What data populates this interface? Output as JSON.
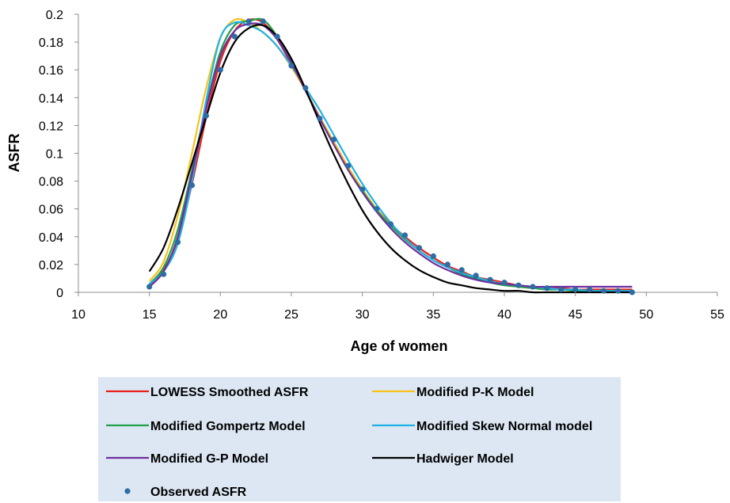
{
  "chart_data": {
    "type": "line",
    "xlabel": "Age of women",
    "ylabel": "ASFR",
    "xlim": [
      10,
      55
    ],
    "ylim": [
      0,
      0.2
    ],
    "x_ticks": [
      10,
      15,
      20,
      25,
      30,
      35,
      40,
      45,
      50,
      55
    ],
    "y_ticks": [
      0,
      0.02,
      0.04,
      0.06,
      0.08,
      0.1,
      0.12,
      0.14,
      0.16,
      0.18,
      0.2
    ],
    "grid": false,
    "legend_position": "bottom",
    "x": [
      15,
      16,
      17,
      18,
      19,
      20,
      21,
      22,
      23,
      24,
      25,
      26,
      27,
      28,
      29,
      30,
      31,
      32,
      33,
      34,
      35,
      36,
      37,
      38,
      39,
      40,
      41,
      42,
      43,
      44,
      45,
      46,
      47,
      48,
      49
    ],
    "series": [
      {
        "name": "LOWESS Smoothed ASFR",
        "kind": "line",
        "color": "#e8211d",
        "values": [
          0.005,
          0.016,
          0.038,
          0.078,
          0.126,
          0.166,
          0.188,
          0.196,
          0.194,
          0.182,
          0.164,
          0.145,
          0.126,
          0.108,
          0.09,
          0.074,
          0.06,
          0.049,
          0.04,
          0.032,
          0.025,
          0.019,
          0.015,
          0.011,
          0.009,
          0.007,
          0.005,
          0.004,
          0.003,
          0.003,
          0.002,
          0.002,
          0.002,
          0.002,
          0.002
        ]
      },
      {
        "name": "Modified P-K Model",
        "kind": "line",
        "color": "#f7c21b",
        "values": [
          0.008,
          0.022,
          0.055,
          0.1,
          0.147,
          0.183,
          0.196,
          0.194,
          0.187,
          0.177,
          0.162,
          0.145,
          0.126,
          0.108,
          0.09,
          0.074,
          0.06,
          0.048,
          0.038,
          0.03,
          0.023,
          0.018,
          0.013,
          0.01,
          0.008,
          0.006,
          0.004,
          0.003,
          0.002,
          0.002,
          0.001,
          0.001,
          0.001,
          0.001,
          0.001
        ]
      },
      {
        "name": "Modified Gompertz Model",
        "kind": "line",
        "color": "#1fa04b",
        "values": [
          0.006,
          0.018,
          0.045,
          0.088,
          0.134,
          0.173,
          0.192,
          0.195,
          0.196,
          0.184,
          0.166,
          0.145,
          0.125,
          0.106,
          0.088,
          0.073,
          0.059,
          0.048,
          0.038,
          0.03,
          0.023,
          0.018,
          0.013,
          0.01,
          0.007,
          0.005,
          0.004,
          0.003,
          0.002,
          0.002,
          0.001,
          0.001,
          0.001,
          0.001,
          0.001
        ]
      },
      {
        "name": "Modified Skew Normal model",
        "kind": "line",
        "color": "#1fb1e6",
        "values": [
          0.006,
          0.015,
          0.035,
          0.08,
          0.138,
          0.183,
          0.194,
          0.192,
          0.187,
          0.177,
          0.163,
          0.147,
          0.131,
          0.113,
          0.095,
          0.078,
          0.063,
          0.05,
          0.039,
          0.03,
          0.023,
          0.018,
          0.014,
          0.011,
          0.008,
          0.006,
          0.005,
          0.004,
          0.003,
          0.002,
          0.002,
          0.001,
          0.001,
          0.001,
          0.001
        ]
      },
      {
        "name": "Modified G-P Model",
        "kind": "line",
        "color": "#6f2f9f",
        "values": [
          0.004,
          0.015,
          0.04,
          0.085,
          0.132,
          0.17,
          0.188,
          0.193,
          0.192,
          0.182,
          0.165,
          0.145,
          0.125,
          0.106,
          0.088,
          0.072,
          0.058,
          0.046,
          0.036,
          0.028,
          0.021,
          0.016,
          0.012,
          0.009,
          0.007,
          0.006,
          0.005,
          0.004,
          0.004,
          0.004,
          0.004,
          0.004,
          0.004,
          0.004,
          0.004
        ]
      },
      {
        "name": "Hadwiger Model",
        "kind": "line",
        "color": "#000000",
        "values": [
          0.015,
          0.032,
          0.06,
          0.093,
          0.126,
          0.158,
          0.18,
          0.19,
          0.192,
          0.184,
          0.168,
          0.146,
          0.122,
          0.099,
          0.078,
          0.059,
          0.044,
          0.032,
          0.023,
          0.016,
          0.011,
          0.007,
          0.005,
          0.003,
          0.002,
          0.001,
          0.001,
          0.0,
          0.0,
          0.0,
          0.0,
          0.0,
          0.0,
          0.0,
          0.0
        ]
      },
      {
        "name": "Observed ASFR",
        "kind": "points",
        "color": "#2e6da4",
        "values": [
          0.004,
          0.013,
          0.036,
          0.077,
          0.127,
          0.16,
          0.184,
          0.195,
          0.195,
          0.184,
          0.163,
          0.147,
          0.125,
          0.11,
          0.091,
          0.074,
          0.06,
          0.049,
          0.041,
          0.032,
          0.026,
          0.02,
          0.016,
          0.012,
          0.009,
          0.007,
          0.005,
          0.004,
          0.003,
          0.002,
          0.002,
          0.002,
          0.001,
          0.001,
          0.0
        ]
      }
    ]
  }
}
